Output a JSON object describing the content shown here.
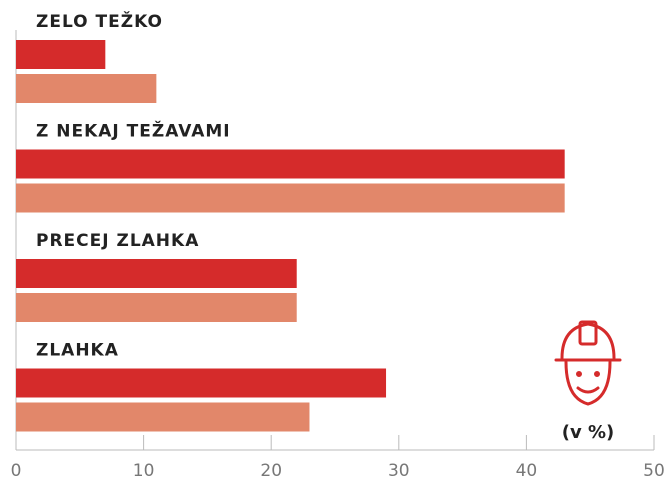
{
  "chart_data": {
    "type": "bar",
    "orientation": "horizontal",
    "categories": [
      "ZELO TEŽKO",
      "Z NEKAJ TEŽAVAMI",
      "PRECEJ ZLAHKA",
      "ZLAHKA"
    ],
    "series": [
      {
        "color": "#d52b2b",
        "values": [
          7,
          43,
          22,
          29
        ]
      },
      {
        "color": "#e2876a",
        "values": [
          11,
          43,
          22,
          23
        ]
      }
    ],
    "xlim": [
      0,
      50
    ],
    "xticks": [
      0,
      10,
      20,
      30,
      40,
      50
    ],
    "annotation": "(v %)"
  }
}
